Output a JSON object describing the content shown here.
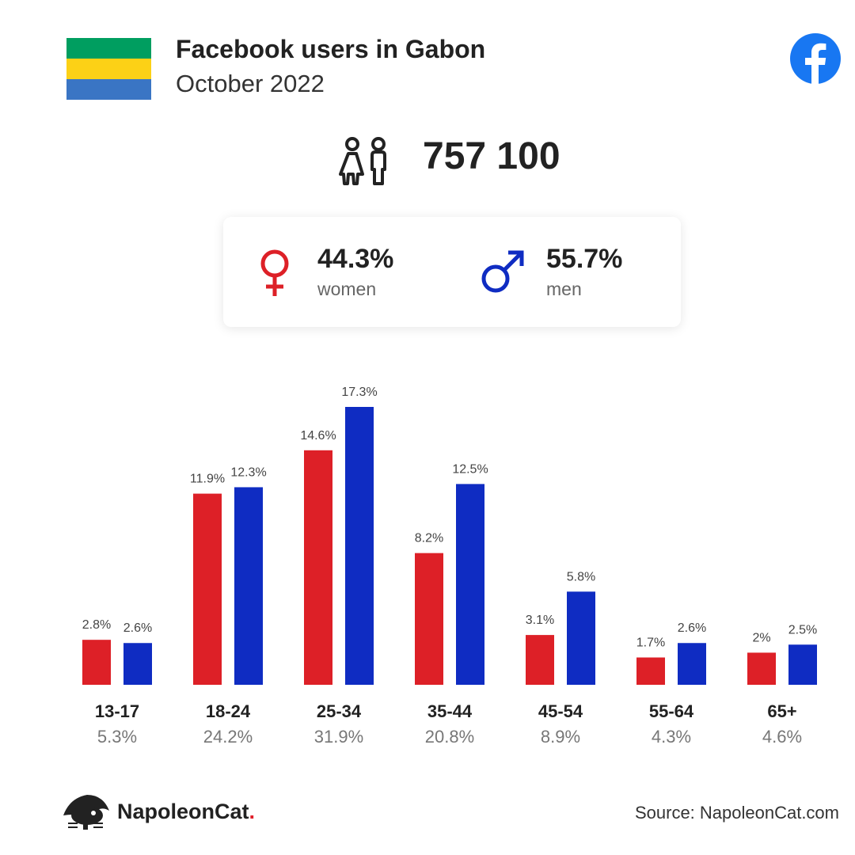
{
  "header": {
    "title": "Facebook users in Gabon",
    "subtitle": "October 2022"
  },
  "total_users": "757 100",
  "gender": {
    "women": {
      "percent": "44.3%",
      "label": "women"
    },
    "men": {
      "percent": "55.7%",
      "label": "men"
    }
  },
  "icons": {
    "flag": "gabon-flag",
    "brand": "facebook-icon",
    "people": "people-icon",
    "female": "female-symbol-icon",
    "male": "male-symbol-icon",
    "logo": "napoleoncat-logo"
  },
  "colors": {
    "women": "#dd2027",
    "men": "#0f2cc2",
    "flag_green": "#009e60",
    "flag_yellow": "#fcd116",
    "flag_blue": "#3a75c4",
    "facebook": "#1877f2"
  },
  "chart_data": {
    "type": "bar",
    "categories": [
      "13-17",
      "18-24",
      "25-34",
      "35-44",
      "45-54",
      "55-64",
      "65+"
    ],
    "category_totals": [
      "5.3%",
      "24.2%",
      "31.9%",
      "20.8%",
      "8.9%",
      "4.3%",
      "4.6%"
    ],
    "series": [
      {
        "values": [
          2.8,
          11.9,
          14.6,
          8.2,
          3.1,
          1.7,
          2.0
        ],
        "labels": [
          "2.8%",
          "11.9%",
          "14.6%",
          "8.2%",
          "3.1%",
          "1.7%",
          "2%"
        ]
      },
      {
        "values": [
          2.6,
          12.3,
          17.3,
          12.5,
          5.8,
          2.6,
          2.5
        ],
        "labels": [
          "2.6%",
          "12.3%",
          "17.3%",
          "12.5%",
          "5.8%",
          "2.6%",
          "2.5%"
        ]
      }
    ],
    "ylim": [
      0,
      17.3
    ],
    "grid": false,
    "legend": "none"
  },
  "footer": {
    "brand_name": "NapoleonCat",
    "brand_dot": ".",
    "source": "Source: NapoleonCat.com"
  }
}
